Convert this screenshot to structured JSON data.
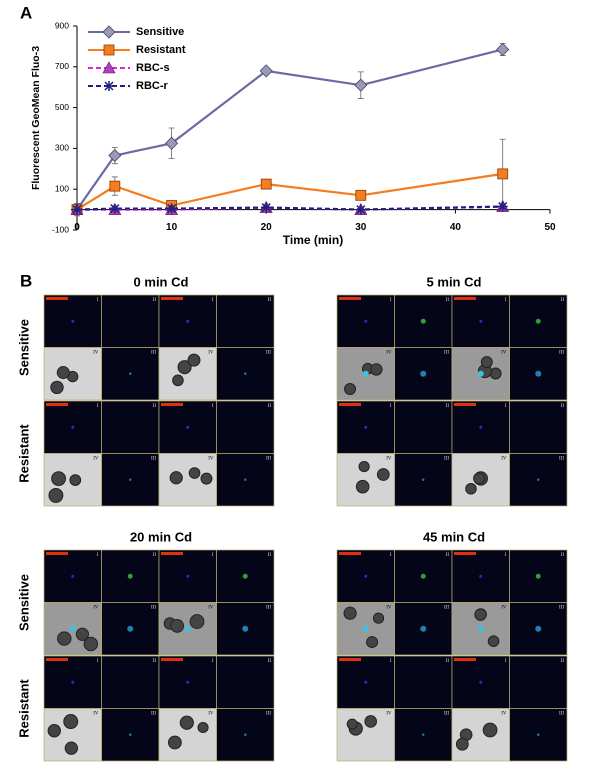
{
  "panel_a_label": "A",
  "chart_data": {
    "type": "line",
    "ylabel": "Fluorescent GeoMean Fluo-3",
    "xlabel": "Time (min)",
    "xlim": [
      0,
      50
    ],
    "xticks": [
      0,
      10,
      20,
      30,
      40,
      50
    ],
    "ylim": [
      -100,
      900
    ],
    "yticks": [
      -100,
      100,
      300,
      500,
      700,
      900
    ],
    "x": [
      0,
      4,
      10,
      20,
      30,
      45
    ],
    "series": [
      {
        "name": "Sensitive",
        "color": "#6a6aa6",
        "marker": "diamond",
        "dashed": false,
        "values": [
          0,
          265,
          325,
          680,
          610,
          785
        ],
        "errors": [
          30,
          40,
          75,
          10,
          65,
          30
        ]
      },
      {
        "name": "Resistant",
        "color": "#f57c1f",
        "marker": "square",
        "dashed": false,
        "values": [
          0,
          115,
          20,
          125,
          70,
          175
        ],
        "errors": [
          30,
          45,
          15,
          10,
          10,
          170
        ]
      },
      {
        "name": "RBC-s",
        "color": "#e020e0",
        "marker": "triangle",
        "dashed": true,
        "values": [
          0,
          0,
          0,
          10,
          0,
          15
        ],
        "errors": [
          5,
          5,
          5,
          5,
          5,
          5
        ]
      },
      {
        "name": "RBC-r",
        "color": "#202080",
        "marker": "star",
        "dashed": true,
        "values": [
          0,
          5,
          5,
          10,
          0,
          15
        ],
        "errors": [
          5,
          5,
          5,
          5,
          5,
          5
        ]
      }
    ]
  },
  "panel_b": {
    "label": "B",
    "time_points": [
      "0 min Cd",
      "5 min Cd",
      "20 min Cd",
      "45 min Cd"
    ],
    "rows": [
      "Sensitive",
      "Resistant"
    ],
    "quadrant_labels": [
      "I",
      "II",
      "III",
      "IV"
    ]
  }
}
